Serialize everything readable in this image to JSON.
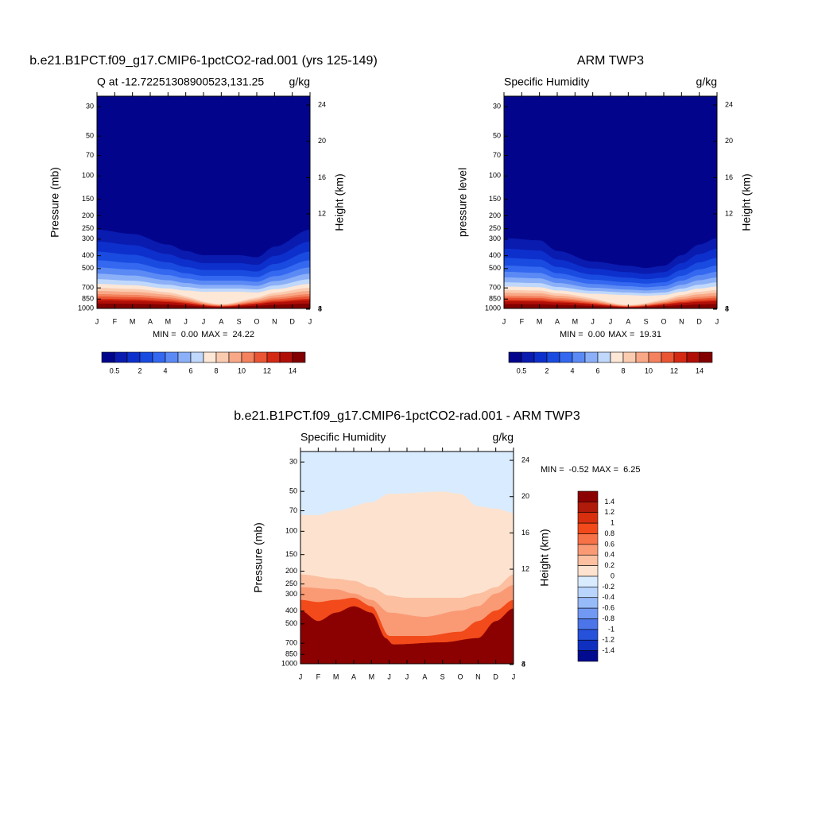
{
  "chart_data": [
    {
      "type": "contour",
      "title": "b.e21.B1PCT.f09_g17.CMIP6-1pctCO2-rad.001 (yrs 125-149)",
      "left_string": "Q at -12.72251308900523,131.25",
      "right_string": "g/kg",
      "ylabel": "Pressure (mb)",
      "y2label": "Height (km)",
      "categories": [
        "J",
        "F",
        "M",
        "A",
        "M",
        "J",
        "J",
        "A",
        "S",
        "O",
        "N",
        "D",
        "J"
      ],
      "ylim": [
        1000,
        25
      ],
      "ylog": true,
      "yticks": [
        30,
        50,
        70,
        100,
        150,
        200,
        250,
        300,
        400,
        500,
        700,
        850,
        1000
      ],
      "y2ticks": [
        4,
        8,
        12,
        16,
        20,
        24
      ],
      "min_label": "MIN =",
      "min": {
        "value": 0,
        "label": "0.00"
      },
      "max_label": "MAX =",
      "max": {
        "value": 24.22,
        "label": "24.22"
      },
      "colorbar": {
        "orientation": "horizontal",
        "labels": [
          0.5,
          2,
          4,
          6,
          8,
          10,
          12,
          14
        ],
        "colors": [
          "#02058c",
          "#0a1bb0",
          "#0d30cc",
          "#1a4be0",
          "#3468f0",
          "#5b8af5",
          "#8bb0f8",
          "#c0d8fb",
          "#fde7d6",
          "#fbcbb0",
          "#f8a886",
          "#f4825f",
          "#ea5634",
          "#d42a14",
          "#b00f08",
          "#820000"
        ]
      }
    },
    {
      "type": "contour",
      "title": "ARM TWP3",
      "left_string": "Specific Humidity",
      "right_string": "g/kg",
      "ylabel": "pressure level",
      "y2label": "Height (km)",
      "categories": [
        "J",
        "F",
        "M",
        "A",
        "M",
        "J",
        "J",
        "A",
        "S",
        "O",
        "N",
        "D",
        "J"
      ],
      "ylim": [
        1000,
        25
      ],
      "ylog": true,
      "yticks": [
        30,
        50,
        70,
        100,
        150,
        200,
        250,
        300,
        400,
        500,
        700,
        850,
        1000
      ],
      "y2ticks": [
        4,
        8,
        12,
        16,
        20,
        24
      ],
      "min_label": "MIN =",
      "min": {
        "value": 0,
        "label": "0.00"
      },
      "max_label": "MAX =",
      "max": {
        "value": 19.31,
        "label": "19.31"
      },
      "colorbar": {
        "orientation": "horizontal",
        "labels": [
          0.5,
          2,
          4,
          6,
          8,
          10,
          12,
          14
        ],
        "colors": [
          "#02058c",
          "#0a1bb0",
          "#0d30cc",
          "#1a4be0",
          "#3468f0",
          "#5b8af5",
          "#8bb0f8",
          "#c0d8fb",
          "#fde7d6",
          "#fbcbb0",
          "#f8a886",
          "#f4825f",
          "#ea5634",
          "#d42a14",
          "#b00f08",
          "#820000"
        ]
      }
    },
    {
      "type": "contour-diff",
      "title": "b.e21.B1PCT.f09_g17.CMIP6-1pctCO2-rad.001 - ARM TWP3",
      "left_string": "Specific Humidity",
      "right_string": "g/kg",
      "ylabel": "Pressure (mb)",
      "y2label": "Height (km)",
      "categories": [
        "J",
        "F",
        "M",
        "A",
        "M",
        "J",
        "J",
        "A",
        "S",
        "O",
        "N",
        "D",
        "J"
      ],
      "ylim": [
        1000,
        25
      ],
      "ylog": true,
      "yticks": [
        30,
        50,
        70,
        100,
        150,
        200,
        250,
        300,
        400,
        500,
        700,
        850,
        1000
      ],
      "y2ticks": [
        4,
        8,
        12,
        16,
        20,
        24
      ],
      "min_label": "MIN =",
      "min": {
        "value": -0.52,
        "label": "-0.52"
      },
      "max_label": "MAX =",
      "max": {
        "value": 6.25,
        "label": "6.25"
      },
      "colorbar": {
        "orientation": "vertical",
        "labels": [
          1.4,
          1.2,
          1,
          0.8,
          0.6,
          0.4,
          0.2,
          0,
          -0.2,
          -0.4,
          -0.6,
          -0.8,
          -1,
          -1.2,
          -1.4
        ],
        "colors": [
          "#8b0000",
          "#b01a0a",
          "#d8300f",
          "#f24a1a",
          "#f87248",
          "#fa9a75",
          "#fcbfa0",
          "#fde3cf",
          "#d9ebff",
          "#b9d5fd",
          "#97baf9",
          "#7199f3",
          "#4b75e9",
          "#2651da",
          "#0f2fbf",
          "#000b8f"
        ]
      }
    }
  ]
}
